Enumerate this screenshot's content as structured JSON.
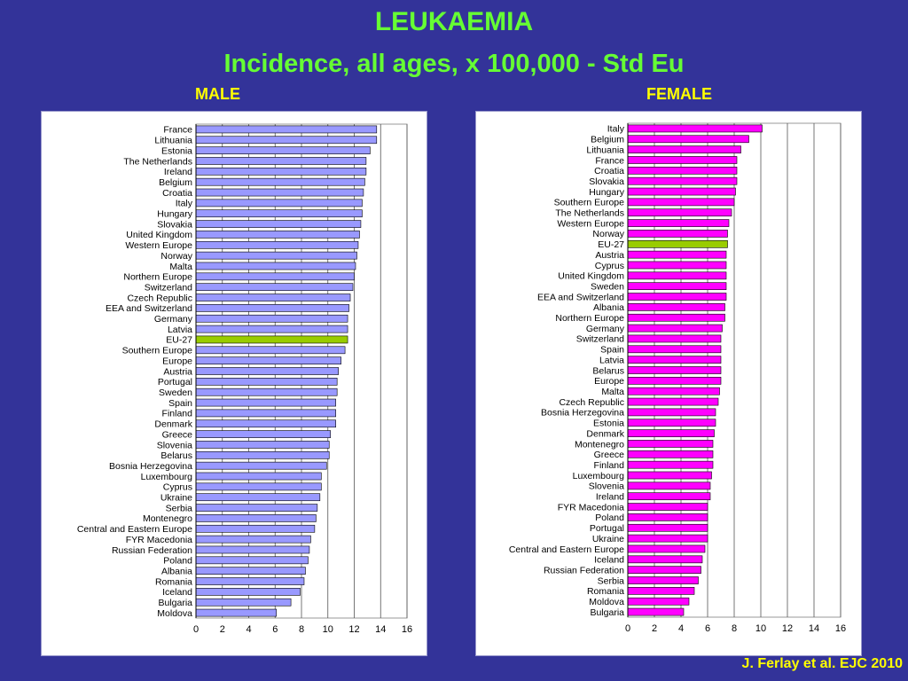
{
  "slide": {
    "title": "LEUKAEMIA",
    "subtitle": "Incidence, all ages, x 100,000 - Std Eu",
    "citation": "J. Ferlay et al. EJC 2010"
  },
  "colors": {
    "background": "#333399",
    "title": "#66ff33",
    "label": "#ffff00",
    "male_bar": "#9999ff",
    "female_bar": "#ff00ff",
    "highlight_bar": "#99cc00"
  },
  "chart_data": [
    {
      "type": "bar",
      "orientation": "horizontal",
      "title": "MALE",
      "highlight": "EU-27",
      "xlim": [
        0,
        16
      ],
      "xticks": [
        0,
        2,
        4,
        6,
        8,
        10,
        12,
        14,
        16
      ],
      "grid": true,
      "categories": [
        "France",
        "Lithuania",
        "Estonia",
        "The Netherlands",
        "Ireland",
        "Belgium",
        "Croatia",
        "Italy",
        "Hungary",
        "Slovakia",
        "United Kingdom",
        "Western Europe",
        "Norway",
        "Malta",
        "Northern Europe",
        "Switzerland",
        "Czech Republic",
        "EEA and Switzerland",
        "Germany",
        "Latvia",
        "EU-27",
        "Southern Europe",
        "Europe",
        "Austria",
        "Portugal",
        "Sweden",
        "Spain",
        "Finland",
        "Denmark",
        "Greece",
        "Slovenia",
        "Belarus",
        "Bosnia Herzegovina",
        "Luxembourg",
        "Cyprus",
        "Ukraine",
        "Serbia",
        "Montenegro",
        "Central and Eastern Europe",
        "FYR Macedonia",
        "Russian Federation",
        "Poland",
        "Albania",
        "Romania",
        "Iceland",
        "Bulgaria",
        "Moldova"
      ],
      "values": [
        13.7,
        13.7,
        13.2,
        12.9,
        12.9,
        12.8,
        12.7,
        12.6,
        12.6,
        12.5,
        12.4,
        12.3,
        12.2,
        12.1,
        12.0,
        11.9,
        11.7,
        11.6,
        11.5,
        11.5,
        11.5,
        11.3,
        11.0,
        10.8,
        10.7,
        10.7,
        10.6,
        10.6,
        10.6,
        10.2,
        10.1,
        10.1,
        9.9,
        9.5,
        9.5,
        9.4,
        9.2,
        9.1,
        9.0,
        8.7,
        8.6,
        8.5,
        8.3,
        8.2,
        7.9,
        7.2,
        6.1
      ]
    },
    {
      "type": "bar",
      "orientation": "horizontal",
      "title": "FEMALE",
      "highlight": "EU-27",
      "xlim": [
        0,
        16
      ],
      "xticks": [
        0,
        2,
        4,
        6,
        8,
        10,
        12,
        14,
        16
      ],
      "grid": true,
      "categories": [
        "Italy",
        "Belgium",
        "Lithuania",
        "France",
        "Croatia",
        "Slovakia",
        "Hungary",
        "Southern Europe",
        "The Netherlands",
        "Western Europe",
        "Norway",
        "EU-27",
        "Austria",
        "Cyprus",
        "United Kingdom",
        "Sweden",
        "EEA and Switzerland",
        "Albania",
        "Northern Europe",
        "Germany",
        "Switzerland",
        "Spain",
        "Latvia",
        "Belarus",
        "Europe",
        "Malta",
        "Czech Republic",
        "Bosnia Herzegovina",
        "Estonia",
        "Denmark",
        "Montenegro",
        "Greece",
        "Finland",
        "Luxembourg",
        "Slovenia",
        "Ireland",
        "FYR Macedonia",
        "Poland",
        "Portugal",
        "Ukraine",
        "Central and Eastern Europe",
        "Iceland",
        "Russian Federation",
        "Serbia",
        "Romania",
        "Moldova",
        "Bulgaria"
      ],
      "values": [
        10.1,
        9.1,
        8.5,
        8.2,
        8.2,
        8.2,
        8.1,
        8.0,
        7.8,
        7.6,
        7.5,
        7.5,
        7.4,
        7.4,
        7.4,
        7.4,
        7.4,
        7.3,
        7.3,
        7.1,
        7.0,
        7.0,
        7.0,
        7.0,
        7.0,
        6.9,
        6.8,
        6.6,
        6.6,
        6.5,
        6.4,
        6.4,
        6.4,
        6.3,
        6.2,
        6.2,
        6.0,
        6.0,
        6.0,
        6.0,
        5.8,
        5.6,
        5.5,
        5.3,
        5.0,
        4.6,
        4.2
      ]
    }
  ]
}
